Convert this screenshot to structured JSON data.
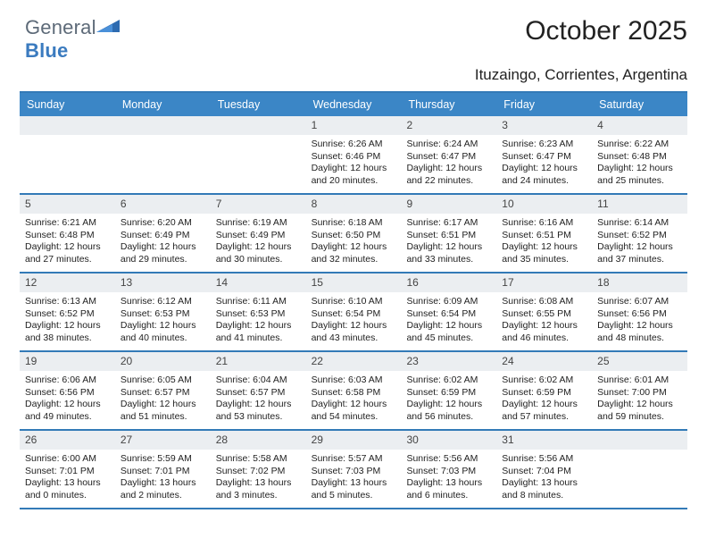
{
  "logo": {
    "text1": "General",
    "text2": "Blue"
  },
  "title": "October 2025",
  "location": "Ituzaingo, Corrientes, Argentina",
  "colors": {
    "header_bg": "#3b86c6",
    "rule": "#337ab7",
    "date_bg": "#ebeef1",
    "text": "#222222",
    "logo_gray": "#5d6a78",
    "logo_blue": "#3b7bbf"
  },
  "day_names": [
    "Sunday",
    "Monday",
    "Tuesday",
    "Wednesday",
    "Thursday",
    "Friday",
    "Saturday"
  ],
  "weeks": [
    [
      {
        "empty": true
      },
      {
        "empty": true
      },
      {
        "empty": true
      },
      {
        "d": "1",
        "sr": "6:26 AM",
        "ss": "6:46 PM",
        "dl1": "12 hours",
        "dl2": "and 20 minutes."
      },
      {
        "d": "2",
        "sr": "6:24 AM",
        "ss": "6:47 PM",
        "dl1": "12 hours",
        "dl2": "and 22 minutes."
      },
      {
        "d": "3",
        "sr": "6:23 AM",
        "ss": "6:47 PM",
        "dl1": "12 hours",
        "dl2": "and 24 minutes."
      },
      {
        "d": "4",
        "sr": "6:22 AM",
        "ss": "6:48 PM",
        "dl1": "12 hours",
        "dl2": "and 25 minutes."
      }
    ],
    [
      {
        "d": "5",
        "sr": "6:21 AM",
        "ss": "6:48 PM",
        "dl1": "12 hours",
        "dl2": "and 27 minutes."
      },
      {
        "d": "6",
        "sr": "6:20 AM",
        "ss": "6:49 PM",
        "dl1": "12 hours",
        "dl2": "and 29 minutes."
      },
      {
        "d": "7",
        "sr": "6:19 AM",
        "ss": "6:49 PM",
        "dl1": "12 hours",
        "dl2": "and 30 minutes."
      },
      {
        "d": "8",
        "sr": "6:18 AM",
        "ss": "6:50 PM",
        "dl1": "12 hours",
        "dl2": "and 32 minutes."
      },
      {
        "d": "9",
        "sr": "6:17 AM",
        "ss": "6:51 PM",
        "dl1": "12 hours",
        "dl2": "and 33 minutes."
      },
      {
        "d": "10",
        "sr": "6:16 AM",
        "ss": "6:51 PM",
        "dl1": "12 hours",
        "dl2": "and 35 minutes."
      },
      {
        "d": "11",
        "sr": "6:14 AM",
        "ss": "6:52 PM",
        "dl1": "12 hours",
        "dl2": "and 37 minutes."
      }
    ],
    [
      {
        "d": "12",
        "sr": "6:13 AM",
        "ss": "6:52 PM",
        "dl1": "12 hours",
        "dl2": "and 38 minutes."
      },
      {
        "d": "13",
        "sr": "6:12 AM",
        "ss": "6:53 PM",
        "dl1": "12 hours",
        "dl2": "and 40 minutes."
      },
      {
        "d": "14",
        "sr": "6:11 AM",
        "ss": "6:53 PM",
        "dl1": "12 hours",
        "dl2": "and 41 minutes."
      },
      {
        "d": "15",
        "sr": "6:10 AM",
        "ss": "6:54 PM",
        "dl1": "12 hours",
        "dl2": "and 43 minutes."
      },
      {
        "d": "16",
        "sr": "6:09 AM",
        "ss": "6:54 PM",
        "dl1": "12 hours",
        "dl2": "and 45 minutes."
      },
      {
        "d": "17",
        "sr": "6:08 AM",
        "ss": "6:55 PM",
        "dl1": "12 hours",
        "dl2": "and 46 minutes."
      },
      {
        "d": "18",
        "sr": "6:07 AM",
        "ss": "6:56 PM",
        "dl1": "12 hours",
        "dl2": "and 48 minutes."
      }
    ],
    [
      {
        "d": "19",
        "sr": "6:06 AM",
        "ss": "6:56 PM",
        "dl1": "12 hours",
        "dl2": "and 49 minutes."
      },
      {
        "d": "20",
        "sr": "6:05 AM",
        "ss": "6:57 PM",
        "dl1": "12 hours",
        "dl2": "and 51 minutes."
      },
      {
        "d": "21",
        "sr": "6:04 AM",
        "ss": "6:57 PM",
        "dl1": "12 hours",
        "dl2": "and 53 minutes."
      },
      {
        "d": "22",
        "sr": "6:03 AM",
        "ss": "6:58 PM",
        "dl1": "12 hours",
        "dl2": "and 54 minutes."
      },
      {
        "d": "23",
        "sr": "6:02 AM",
        "ss": "6:59 PM",
        "dl1": "12 hours",
        "dl2": "and 56 minutes."
      },
      {
        "d": "24",
        "sr": "6:02 AM",
        "ss": "6:59 PM",
        "dl1": "12 hours",
        "dl2": "and 57 minutes."
      },
      {
        "d": "25",
        "sr": "6:01 AM",
        "ss": "7:00 PM",
        "dl1": "12 hours",
        "dl2": "and 59 minutes."
      }
    ],
    [
      {
        "d": "26",
        "sr": "6:00 AM",
        "ss": "7:01 PM",
        "dl1": "13 hours",
        "dl2": "and 0 minutes."
      },
      {
        "d": "27",
        "sr": "5:59 AM",
        "ss": "7:01 PM",
        "dl1": "13 hours",
        "dl2": "and 2 minutes."
      },
      {
        "d": "28",
        "sr": "5:58 AM",
        "ss": "7:02 PM",
        "dl1": "13 hours",
        "dl2": "and 3 minutes."
      },
      {
        "d": "29",
        "sr": "5:57 AM",
        "ss": "7:03 PM",
        "dl1": "13 hours",
        "dl2": "and 5 minutes."
      },
      {
        "d": "30",
        "sr": "5:56 AM",
        "ss": "7:03 PM",
        "dl1": "13 hours",
        "dl2": "and 6 minutes."
      },
      {
        "d": "31",
        "sr": "5:56 AM",
        "ss": "7:04 PM",
        "dl1": "13 hours",
        "dl2": "and 8 minutes."
      },
      {
        "empty": true
      }
    ]
  ],
  "labels": {
    "sunrise": "Sunrise:",
    "sunset": "Sunset:",
    "daylight": "Daylight:"
  }
}
